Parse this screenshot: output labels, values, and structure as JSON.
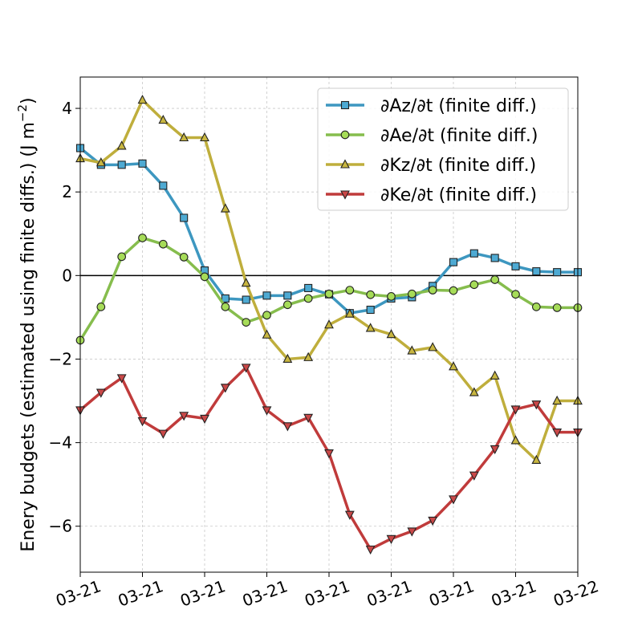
{
  "chart_data": {
    "type": "line",
    "title": "",
    "xlabel": "",
    "ylabel": "Enery budgets (estimated using finite diffs.) (J m",
    "ylabel_superscript": "−2",
    "ylabel_close": ")",
    "xlim": [
      0,
      24
    ],
    "ylim": [
      -7.1,
      4.75
    ],
    "x": [
      0,
      1,
      2,
      3,
      4,
      5,
      6,
      7,
      8,
      9,
      10,
      11,
      12,
      13,
      14,
      15,
      16,
      17,
      18,
      19,
      20,
      21,
      22,
      23,
      24
    ],
    "xticks": [
      0,
      3,
      6,
      9,
      12,
      15,
      18,
      21,
      24
    ],
    "xtick_labels": [
      "03-21",
      "03-21",
      "03-21",
      "03-21",
      "03-21",
      "03-21",
      "03-21",
      "03-21",
      "03-22"
    ],
    "yticks": [
      -6,
      -4,
      -2,
      0,
      2,
      4
    ],
    "ytick_labels": [
      "−6",
      "−4",
      "−2",
      "0",
      "2",
      "4"
    ],
    "grid": true,
    "zero_line": true,
    "legend_position": "top-right",
    "series": [
      {
        "name": "∂Az/∂t (finite diff.)",
        "color": "#3d97c0",
        "marker_color": "#4eaad3",
        "marker": "square",
        "values": [
          3.05,
          2.65,
          2.65,
          2.68,
          2.15,
          1.38,
          0.12,
          -0.55,
          -0.58,
          -0.48,
          -0.48,
          -0.3,
          -0.45,
          -0.9,
          -0.82,
          -0.55,
          -0.52,
          -0.25,
          0.32,
          0.53,
          0.42,
          0.22,
          0.1,
          0.08,
          0.08
        ]
      },
      {
        "name": "∂Ae/∂t (finite diff.)",
        "color": "#86bd4d",
        "marker_color": "#a6dc58",
        "marker": "circle",
        "values": [
          -1.55,
          -0.75,
          0.45,
          0.9,
          0.75,
          0.44,
          -0.03,
          -0.75,
          -1.12,
          -0.95,
          -0.7,
          -0.55,
          -0.44,
          -0.35,
          -0.46,
          -0.5,
          -0.44,
          -0.35,
          -0.36,
          -0.22,
          -0.1,
          -0.45,
          -0.75,
          -0.77,
          -0.77
        ]
      },
      {
        "name": "∂Kz/∂t (finite diff.)",
        "color": "#bfae3c",
        "marker_color": "#c8b640",
        "marker": "triangle-up",
        "values": [
          2.8,
          2.7,
          3.1,
          4.2,
          3.72,
          3.3,
          3.3,
          1.6,
          -0.18,
          -1.42,
          -2.0,
          -1.96,
          -1.18,
          -0.92,
          -1.26,
          -1.41,
          -1.8,
          -1.72,
          -2.18,
          -2.8,
          -2.4,
          -3.95,
          -4.42,
          -3.0,
          -3.0
        ]
      },
      {
        "name": "∂Ke/∂t (finite diff.)",
        "color": "#c03b3b",
        "marker_color": "#c94848",
        "marker": "triangle-down",
        "values": [
          -3.22,
          -2.8,
          -2.45,
          -3.48,
          -3.78,
          -3.35,
          -3.42,
          -2.68,
          -2.2,
          -3.22,
          -3.6,
          -3.4,
          -4.25,
          -5.72,
          -6.55,
          -6.3,
          -6.12,
          -5.86,
          -5.35,
          -4.78,
          -4.15,
          -3.2,
          -3.08,
          -3.75,
          -3.75
        ]
      }
    ]
  }
}
